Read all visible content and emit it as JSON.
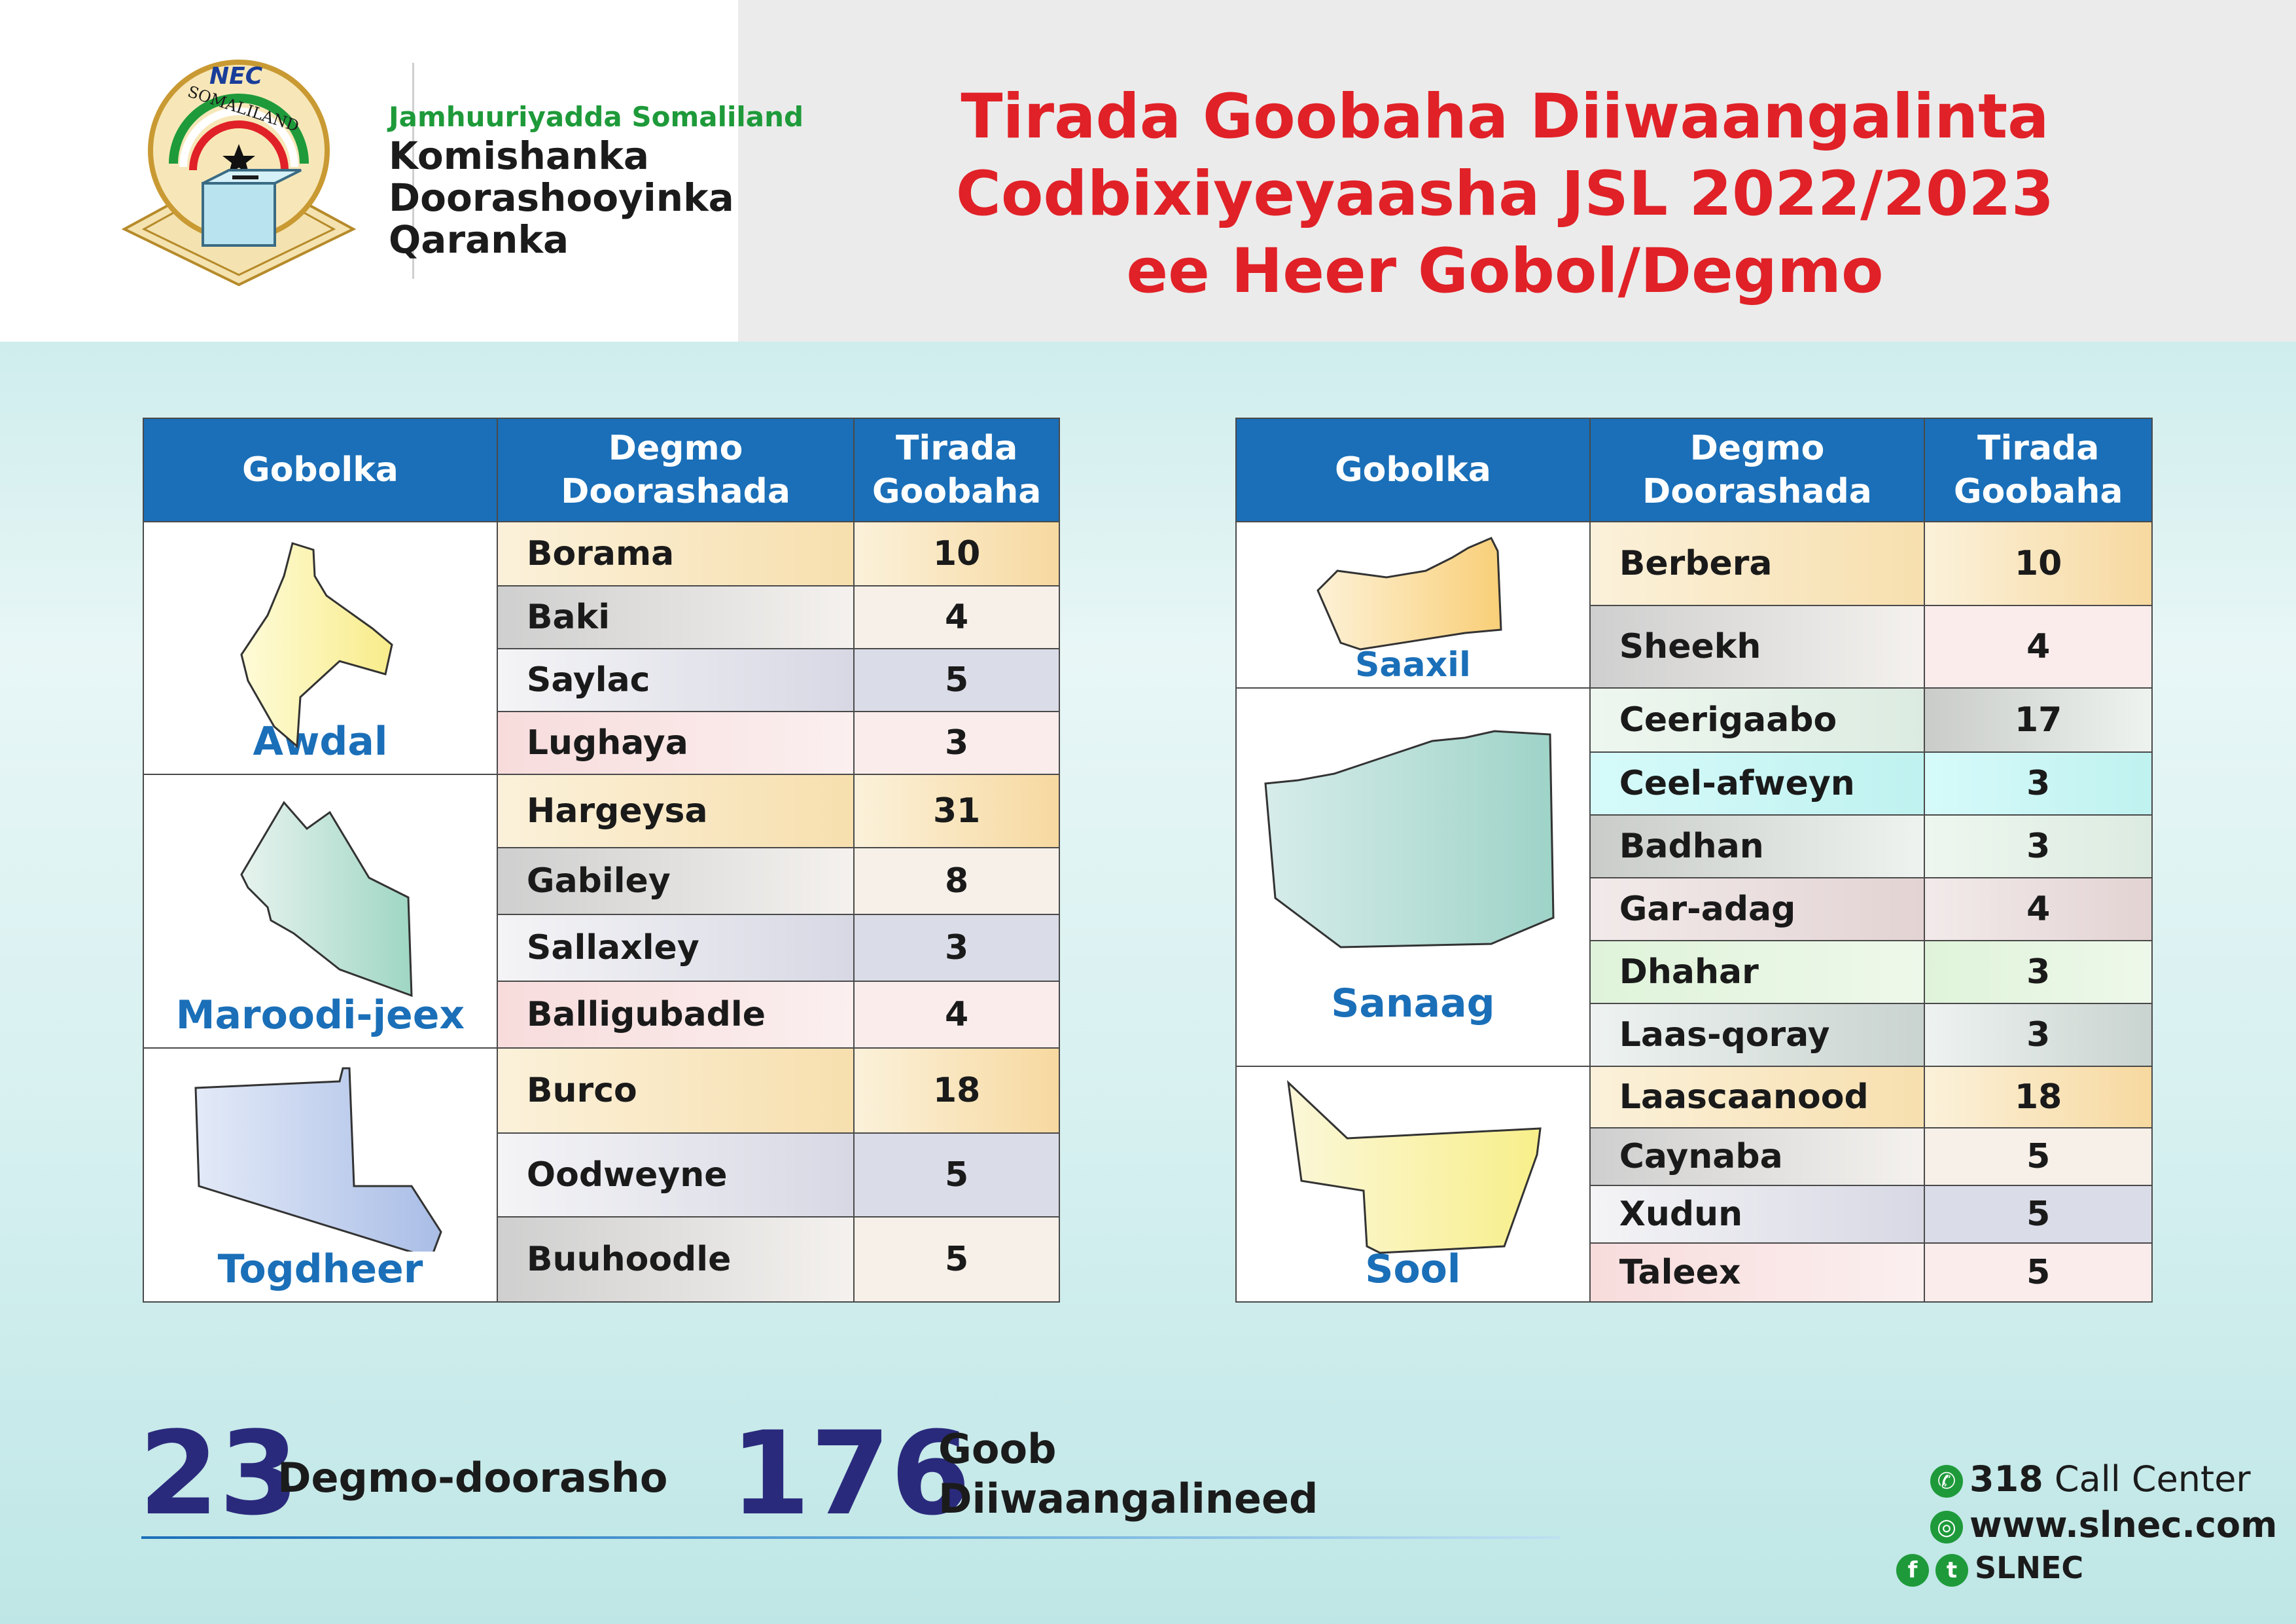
{
  "header": {
    "logo": {
      "emblem_text_top": "NEC",
      "emblem_text_ring": "SOMALILAND"
    },
    "org_line1": "Jamhuuriyadda Somaliland",
    "org_line2": "Komishanka",
    "org_line3": "Doorashooyinka",
    "org_line4": "Qaranka",
    "title_line1": "Tirada Goobaha Diiwaangalinta",
    "title_line2": "Codbixiyeyaasha JSL 2022/2023",
    "title_line3": "ee Heer Gobol/Degmo",
    "title_color": "#e02127"
  },
  "table_headers": {
    "region": "Gobolka",
    "district_l1": "Degmo",
    "district_l2": "Doorashada",
    "count_l1": "Tirada",
    "count_l2": "Goobaha",
    "header_color": "#1a6fb8"
  },
  "left_table": {
    "regions": [
      {
        "name": "Awdal",
        "map_icon": "awdal-map-icon",
        "map_color": "#fbf0a8",
        "districts": [
          {
            "name": "Borama",
            "count": "10"
          },
          {
            "name": "Baki",
            "count": "4"
          },
          {
            "name": "Saylac",
            "count": "5"
          },
          {
            "name": "Lughaya",
            "count": "3"
          }
        ]
      },
      {
        "name": "Maroodi-jeex",
        "map_icon": "maroodi-jeex-map-icon",
        "map_color": "#bfe3da",
        "districts": [
          {
            "name": "Hargeysa",
            "count": "31"
          },
          {
            "name": "Gabiley",
            "count": "8"
          },
          {
            "name": "Sallaxley",
            "count": "3"
          },
          {
            "name": "Balligubadle",
            "count": "4"
          }
        ]
      },
      {
        "name": "Togdheer",
        "map_icon": "togdheer-map-icon",
        "map_color": "#c7d5ee",
        "districts": [
          {
            "name": "Burco",
            "count": "18"
          },
          {
            "name": "Oodweyne",
            "count": "5"
          },
          {
            "name": "Buuhoodle",
            "count": "5"
          }
        ]
      }
    ]
  },
  "right_table": {
    "regions": [
      {
        "name": "Saaxil",
        "map_icon": "saaxil-map-icon",
        "map_color": "#fbd99a",
        "districts": [
          {
            "name": "Berbera",
            "count": "10"
          },
          {
            "name": "Sheekh",
            "count": "4"
          }
        ]
      },
      {
        "name": "Sanaag",
        "map_icon": "sanaag-map-icon",
        "map_color": "#a9d9cf",
        "districts": [
          {
            "name": "Ceerigaabo",
            "count": "17"
          },
          {
            "name": "Ceel-afweyn",
            "count": "3"
          },
          {
            "name": "Badhan",
            "count": "3"
          },
          {
            "name": "Gar-adag",
            "count": "4"
          },
          {
            "name": "Dhahar",
            "count": "3"
          },
          {
            "name": "Laas-qoray",
            "count": "3"
          }
        ]
      },
      {
        "name": "Sool",
        "map_icon": "sool-map-icon",
        "map_color": "#fbf3a6",
        "districts": [
          {
            "name": "Laascaanood",
            "count": "18"
          },
          {
            "name": "Caynaba",
            "count": "5"
          },
          {
            "name": "Xudun",
            "count": "5"
          },
          {
            "name": "Taleex",
            "count": "5"
          }
        ]
      }
    ]
  },
  "summary": {
    "districts_total": "23",
    "districts_label": "Degmo-doorasho",
    "sites_total": "176",
    "sites_label_l1": "Goob",
    "sites_label_l2": "Diiwaangalineed",
    "number_color": "#2a2a7d"
  },
  "contact": {
    "call_number": "318",
    "call_label": "Call Center",
    "website": "www.slnec.com",
    "social_handle": "SLNEC",
    "icons": [
      "phone-icon",
      "globe-icon",
      "facebook-icon",
      "twitter-icon"
    ]
  }
}
